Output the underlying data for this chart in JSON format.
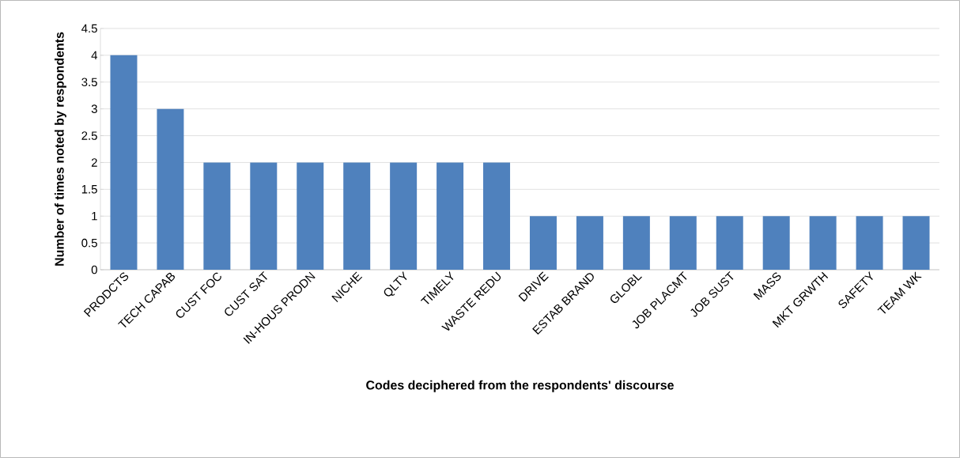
{
  "chart_data": {
    "type": "bar",
    "xlabel": "Codes deciphered from the respondents' discourse",
    "ylabel": "Number of times noted by respondents",
    "categories": [
      "PRODCTS",
      "TECH CAPAB",
      "CUST FOC",
      "CUST SAT",
      "IN-HOUS PRODN",
      "NICHE",
      "QLTY",
      "TIMELY",
      "WASTE REDU",
      "DRIVE",
      "ESTAB BRAND",
      "GLOBL",
      "JOB PLACMT",
      "JOB SUST",
      "MASS",
      "MKT GRWTH",
      "SAFETY",
      "TEAM WK"
    ],
    "values": [
      4,
      3,
      2,
      2,
      2,
      2,
      2,
      2,
      2,
      1,
      1,
      1,
      1,
      1,
      1,
      1,
      1,
      1
    ],
    "color": "#4f81bd",
    "ylim": [
      0,
      4.5
    ],
    "yticks": [
      0,
      0.5,
      1,
      1.5,
      2,
      2.5,
      3,
      3.5,
      4,
      4.5
    ],
    "grid": "y"
  }
}
